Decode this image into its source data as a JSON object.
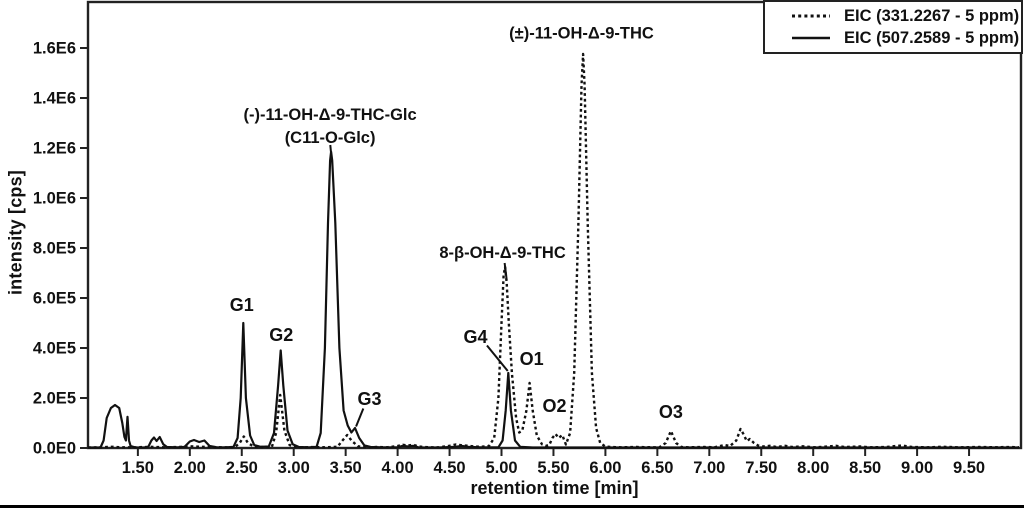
{
  "figure": {
    "background": "#ffffff",
    "line_color": "#111111",
    "axis_color": "#222222"
  },
  "legend": {
    "items": [
      {
        "label": "EIC (331.2267 - 5 ppm)",
        "style": "dashed"
      },
      {
        "label": "EIC (507.2589 - 5 ppm)",
        "style": "solid"
      }
    ]
  },
  "chart_data": {
    "type": "line",
    "title": "",
    "xlabel": "retention time [min]",
    "ylabel": "intensity [cps]",
    "xlim": [
      1.02,
      10.0
    ],
    "ylim": [
      0,
      1784000
    ],
    "grid": false,
    "legend_position": "top-right",
    "x_ticks": [
      {
        "t": 1.5,
        "label": "1.50"
      },
      {
        "t": 2.0,
        "label": "2.00"
      },
      {
        "t": 2.5,
        "label": "2.50"
      },
      {
        "t": 3.0,
        "label": "3.00"
      },
      {
        "t": 3.5,
        "label": "3.50"
      },
      {
        "t": 4.0,
        "label": "4.00"
      },
      {
        "t": 4.5,
        "label": "4.50"
      },
      {
        "t": 5.0,
        "label": "5.00"
      },
      {
        "t": 5.5,
        "label": "5.50"
      },
      {
        "t": 6.0,
        "label": "6.00"
      },
      {
        "t": 6.5,
        "label": "6.50"
      },
      {
        "t": 7.0,
        "label": "7.00"
      },
      {
        "t": 7.5,
        "label": "7.50"
      },
      {
        "t": 8.0,
        "label": "8.00"
      },
      {
        "t": 8.5,
        "label": "8.50"
      },
      {
        "t": 9.0,
        "label": "9.00"
      },
      {
        "t": 9.5,
        "label": "9.50"
      }
    ],
    "y_ticks": [
      {
        "v": 0,
        "label": "0.0E0"
      },
      {
        "v": 200000,
        "label": "2.0E5"
      },
      {
        "v": 400000,
        "label": "4.0E5"
      },
      {
        "v": 600000,
        "label": "6.0E5"
      },
      {
        "v": 800000,
        "label": "8.0E5"
      },
      {
        "v": 1000000,
        "label": "1.0E6"
      },
      {
        "v": 1200000,
        "label": "1.2E6"
      },
      {
        "v": 1400000,
        "label": "1.4E6"
      },
      {
        "v": 1600000,
        "label": "1.6E6"
      }
    ],
    "annotations": [
      {
        "text": "(-)-11-OH-Δ-9-THC-Glc",
        "t": 3.35,
        "v": 1330000,
        "size": "compound"
      },
      {
        "text": "(C11-O-Glc)",
        "t": 3.35,
        "v": 1237000,
        "size": "compound"
      },
      {
        "text": "(±)-11-OH-Δ-9-THC",
        "t": 5.77,
        "v": 1655000,
        "size": "compound"
      },
      {
        "text": "8-β-OH-Δ-9-THC",
        "t": 5.01,
        "v": 778000,
        "size": "compound"
      },
      {
        "text": "G1",
        "t": 2.5,
        "v": 568000,
        "size": "peak"
      },
      {
        "text": "G2",
        "t": 2.88,
        "v": 448000,
        "size": "peak"
      },
      {
        "text": "G3",
        "t": 3.73,
        "v": 192000,
        "size": "peak"
      },
      {
        "text": "G4",
        "t": 4.75,
        "v": 440000,
        "size": "peak"
      },
      {
        "text": "O1",
        "t": 5.29,
        "v": 352000,
        "size": "peak"
      },
      {
        "text": "O2",
        "t": 5.51,
        "v": 164000,
        "size": "peak"
      },
      {
        "text": "O3",
        "t": 6.63,
        "v": 140000,
        "size": "peak"
      }
    ],
    "leader_lines": [
      {
        "t1": 3.67,
        "v1": 158000,
        "t2": 3.6,
        "v2": 86000
      },
      {
        "t1": 4.86,
        "v1": 410000,
        "t2": 5.06,
        "v2": 308000
      },
      {
        "t1": 5.03,
        "v1": 740000,
        "t2": 5.05,
        "v2": 672000
      },
      {
        "t1": 3.352,
        "v1": 1212000,
        "t2": 3.358,
        "v2": 1186000
      }
    ],
    "series": [
      {
        "name": "EIC (331.2267 - 5 ppm)",
        "style": "dashed",
        "points": [
          [
            1.02,
            2000
          ],
          [
            1.15,
            3000
          ],
          [
            1.25,
            5000
          ],
          [
            1.35,
            3000
          ],
          [
            1.5,
            3000
          ],
          [
            1.62,
            5000
          ],
          [
            1.75,
            3000
          ],
          [
            1.9,
            4000
          ],
          [
            2.0,
            7000
          ],
          [
            2.1,
            5000
          ],
          [
            2.2,
            4000
          ],
          [
            2.3,
            3000
          ],
          [
            2.38,
            3000
          ],
          [
            2.43,
            3000
          ],
          [
            2.48,
            20000
          ],
          [
            2.52,
            46000
          ],
          [
            2.56,
            20000
          ],
          [
            2.62,
            5000
          ],
          [
            2.7,
            4000
          ],
          [
            2.79,
            5000
          ],
          [
            2.83,
            60000
          ],
          [
            2.87,
            212000
          ],
          [
            2.91,
            70000
          ],
          [
            2.96,
            12000
          ],
          [
            3.01,
            4000
          ],
          [
            3.1,
            3000
          ],
          [
            3.2,
            4000
          ],
          [
            3.3,
            3000
          ],
          [
            3.38,
            4000
          ],
          [
            3.42,
            5000
          ],
          [
            3.47,
            30000
          ],
          [
            3.515,
            52000
          ],
          [
            3.56,
            28000
          ],
          [
            3.62,
            7000
          ],
          [
            3.7,
            3000
          ],
          [
            3.8,
            4000
          ],
          [
            3.9,
            3000
          ],
          [
            4.0,
            8000
          ],
          [
            4.05,
            13000
          ],
          [
            4.1,
            10000
          ],
          [
            4.15,
            13000
          ],
          [
            4.2,
            6000
          ],
          [
            4.3,
            3000
          ],
          [
            4.4,
            3000
          ],
          [
            4.5,
            9000
          ],
          [
            4.56,
            14000
          ],
          [
            4.62,
            11000
          ],
          [
            4.68,
            9000
          ],
          [
            4.74,
            6000
          ],
          [
            4.8,
            5000
          ],
          [
            4.88,
            8000
          ],
          [
            4.93,
            40000
          ],
          [
            4.97,
            200000
          ],
          [
            5.0,
            500000
          ],
          [
            5.02,
            690000
          ],
          [
            5.035,
            724000
          ],
          [
            5.05,
            660000
          ],
          [
            5.07,
            500000
          ],
          [
            5.1,
            300000
          ],
          [
            5.14,
            120000
          ],
          [
            5.17,
            62000
          ],
          [
            5.2,
            70000
          ],
          [
            5.24,
            150000
          ],
          [
            5.27,
            260000
          ],
          [
            5.3,
            150000
          ],
          [
            5.34,
            50000
          ],
          [
            5.39,
            15000
          ],
          [
            5.43,
            9000
          ],
          [
            5.46,
            12000
          ],
          [
            5.49,
            40000
          ],
          [
            5.52,
            56000
          ],
          [
            5.55,
            40000
          ],
          [
            5.585,
            52000
          ],
          [
            5.62,
            14000
          ],
          [
            5.66,
            60000
          ],
          [
            5.7,
            300000
          ],
          [
            5.74,
            900000
          ],
          [
            5.77,
            1450000
          ],
          [
            5.785,
            1576000
          ],
          [
            5.8,
            1450000
          ],
          [
            5.83,
            900000
          ],
          [
            5.87,
            300000
          ],
          [
            5.91,
            80000
          ],
          [
            5.95,
            20000
          ],
          [
            6.0,
            6000
          ],
          [
            6.05,
            4000
          ],
          [
            6.15,
            3000
          ],
          [
            6.3,
            4000
          ],
          [
            6.45,
            3000
          ],
          [
            6.52,
            3000
          ],
          [
            6.58,
            20000
          ],
          [
            6.63,
            68000
          ],
          [
            6.68,
            20000
          ],
          [
            6.73,
            4000
          ],
          [
            6.8,
            3000
          ],
          [
            6.95,
            4000
          ],
          [
            7.05,
            3000
          ],
          [
            7.15,
            12000
          ],
          [
            7.2,
            8000
          ],
          [
            7.26,
            30000
          ],
          [
            7.3,
            76000
          ],
          [
            7.33,
            55000
          ],
          [
            7.36,
            28000
          ],
          [
            7.39,
            36000
          ],
          [
            7.43,
            20000
          ],
          [
            7.47,
            10000
          ],
          [
            7.52,
            6000
          ],
          [
            7.58,
            9000
          ],
          [
            7.65,
            4000
          ],
          [
            7.73,
            9000
          ],
          [
            7.8,
            4000
          ],
          [
            7.9,
            7000
          ],
          [
            8.0,
            3000
          ],
          [
            8.1,
            5000
          ],
          [
            8.22,
            9000
          ],
          [
            8.3,
            4000
          ],
          [
            8.45,
            6000
          ],
          [
            8.55,
            3000
          ],
          [
            8.7,
            4000
          ],
          [
            8.85,
            10000
          ],
          [
            8.95,
            4000
          ],
          [
            9.1,
            3000
          ],
          [
            9.25,
            5000
          ],
          [
            9.4,
            3000
          ],
          [
            9.6,
            4000
          ],
          [
            9.75,
            3000
          ],
          [
            9.9,
            4000
          ],
          [
            9.98,
            3000
          ]
        ]
      },
      {
        "name": "EIC (507.2589 - 5 ppm)",
        "style": "solid",
        "points": [
          [
            1.02,
            2000
          ],
          [
            1.14,
            2000
          ],
          [
            1.17,
            30000
          ],
          [
            1.2,
            120000
          ],
          [
            1.24,
            160000
          ],
          [
            1.28,
            172000
          ],
          [
            1.32,
            160000
          ],
          [
            1.35,
            100000
          ],
          [
            1.37,
            45000
          ],
          [
            1.385,
            30000
          ],
          [
            1.4,
            125000
          ],
          [
            1.415,
            30000
          ],
          [
            1.43,
            8000
          ],
          [
            1.47,
            3000
          ],
          [
            1.56,
            2000
          ],
          [
            1.6,
            5000
          ],
          [
            1.63,
            30000
          ],
          [
            1.655,
            42000
          ],
          [
            1.68,
            28000
          ],
          [
            1.71,
            44000
          ],
          [
            1.745,
            15000
          ],
          [
            1.78,
            4000
          ],
          [
            1.88,
            3000
          ],
          [
            1.95,
            5000
          ],
          [
            2.0,
            26000
          ],
          [
            2.04,
            32000
          ],
          [
            2.09,
            24000
          ],
          [
            2.14,
            30000
          ],
          [
            2.19,
            8000
          ],
          [
            2.26,
            3000
          ],
          [
            2.35,
            3000
          ],
          [
            2.42,
            5000
          ],
          [
            2.46,
            40000
          ],
          [
            2.49,
            200000
          ],
          [
            2.515,
            500000
          ],
          [
            2.54,
            200000
          ],
          [
            2.58,
            50000
          ],
          [
            2.62,
            12000
          ],
          [
            2.68,
            5000
          ],
          [
            2.76,
            6000
          ],
          [
            2.81,
            60000
          ],
          [
            2.85,
            250000
          ],
          [
            2.875,
            390000
          ],
          [
            2.9,
            250000
          ],
          [
            2.94,
            70000
          ],
          [
            2.99,
            15000
          ],
          [
            3.05,
            4000
          ],
          [
            3.15,
            3000
          ],
          [
            3.22,
            5000
          ],
          [
            3.26,
            60000
          ],
          [
            3.3,
            400000
          ],
          [
            3.33,
            900000
          ],
          [
            3.35,
            1150000
          ],
          [
            3.36,
            1185000
          ],
          [
            3.37,
            1150000
          ],
          [
            3.4,
            900000
          ],
          [
            3.44,
            400000
          ],
          [
            3.48,
            150000
          ],
          [
            3.52,
            90000
          ],
          [
            3.555,
            62000
          ],
          [
            3.59,
            80000
          ],
          [
            3.63,
            40000
          ],
          [
            3.68,
            10000
          ],
          [
            3.74,
            4000
          ],
          [
            3.85,
            3000
          ],
          [
            4.0,
            3000
          ],
          [
            4.05,
            9000
          ],
          [
            4.1,
            6000
          ],
          [
            4.15,
            9000
          ],
          [
            4.2,
            3000
          ],
          [
            4.4,
            2000
          ],
          [
            4.55,
            5000
          ],
          [
            4.62,
            8000
          ],
          [
            4.68,
            5000
          ],
          [
            4.8,
            3000
          ],
          [
            4.9,
            3000
          ],
          [
            4.97,
            3000
          ],
          [
            5.01,
            30000
          ],
          [
            5.04,
            150000
          ],
          [
            5.065,
            300000
          ],
          [
            5.09,
            150000
          ],
          [
            5.13,
            30000
          ],
          [
            5.18,
            5000
          ],
          [
            5.3,
            2000
          ],
          [
            5.6,
            2000
          ],
          [
            6.0,
            2000
          ],
          [
            6.5,
            2000
          ],
          [
            7.0,
            2000
          ],
          [
            7.5,
            2000
          ],
          [
            8.0,
            2000
          ],
          [
            8.5,
            2000
          ],
          [
            9.0,
            2000
          ],
          [
            9.5,
            2000
          ],
          [
            9.98,
            2000
          ]
        ]
      }
    ]
  }
}
